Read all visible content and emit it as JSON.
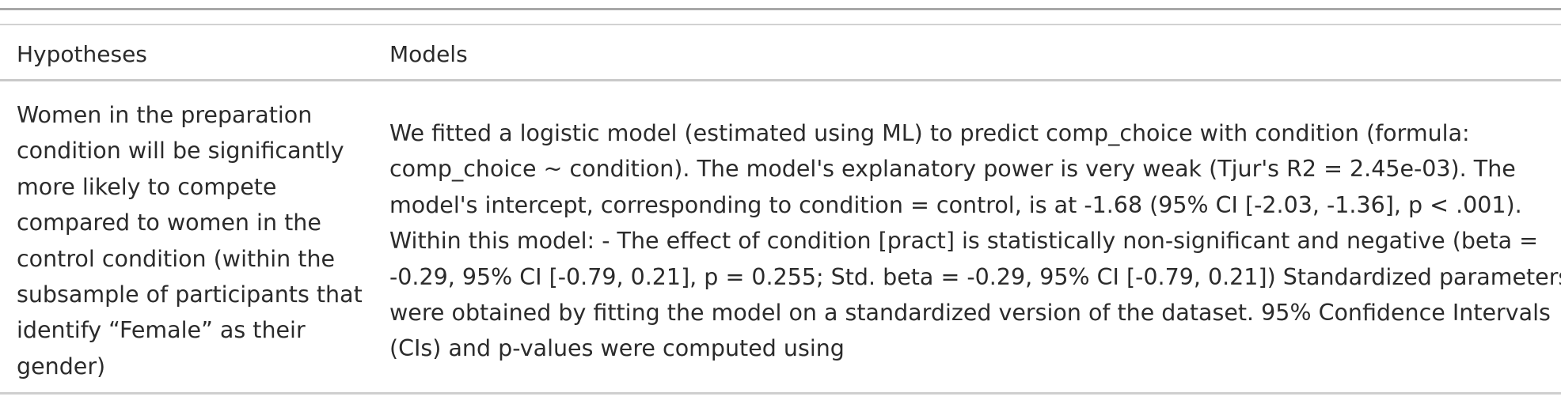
{
  "table": {
    "headers": {
      "hypotheses": "Hypotheses",
      "models": "Models"
    },
    "rows": [
      {
        "hypothesis_lines": [
          "Women in the preparation",
          "condition will be significantly",
          "more likely to compete",
          "compared to women in the",
          "control condition (within the",
          "subsample of participants that",
          "identify “Female” as their",
          "gender)"
        ],
        "model_lines": [
          "We fitted a logistic model (estimated using ML) to predict comp_choice with condition (formula:",
          "comp_choice ~ condition). The model's explanatory power is very weak (Tjur's R2 = 2.45e-03). The",
          "model's intercept, corresponding to condition = control, is at -1.68 (95% CI [-2.03, -1.36], p < .001).",
          "Within this model: - The effect of condition [pract] is statistically non-significant and negative (beta =",
          "-0.29, 95% CI [-0.79, 0.21], p = 0.255; Std. beta = -0.29, 95% CI [-0.79, 0.21]) Standardized parameters",
          "were obtained by fitting the model on a standardized version of the dataset. 95% Confidence Intervals",
          "(CIs) and p-values were computed using"
        ]
      }
    ]
  }
}
